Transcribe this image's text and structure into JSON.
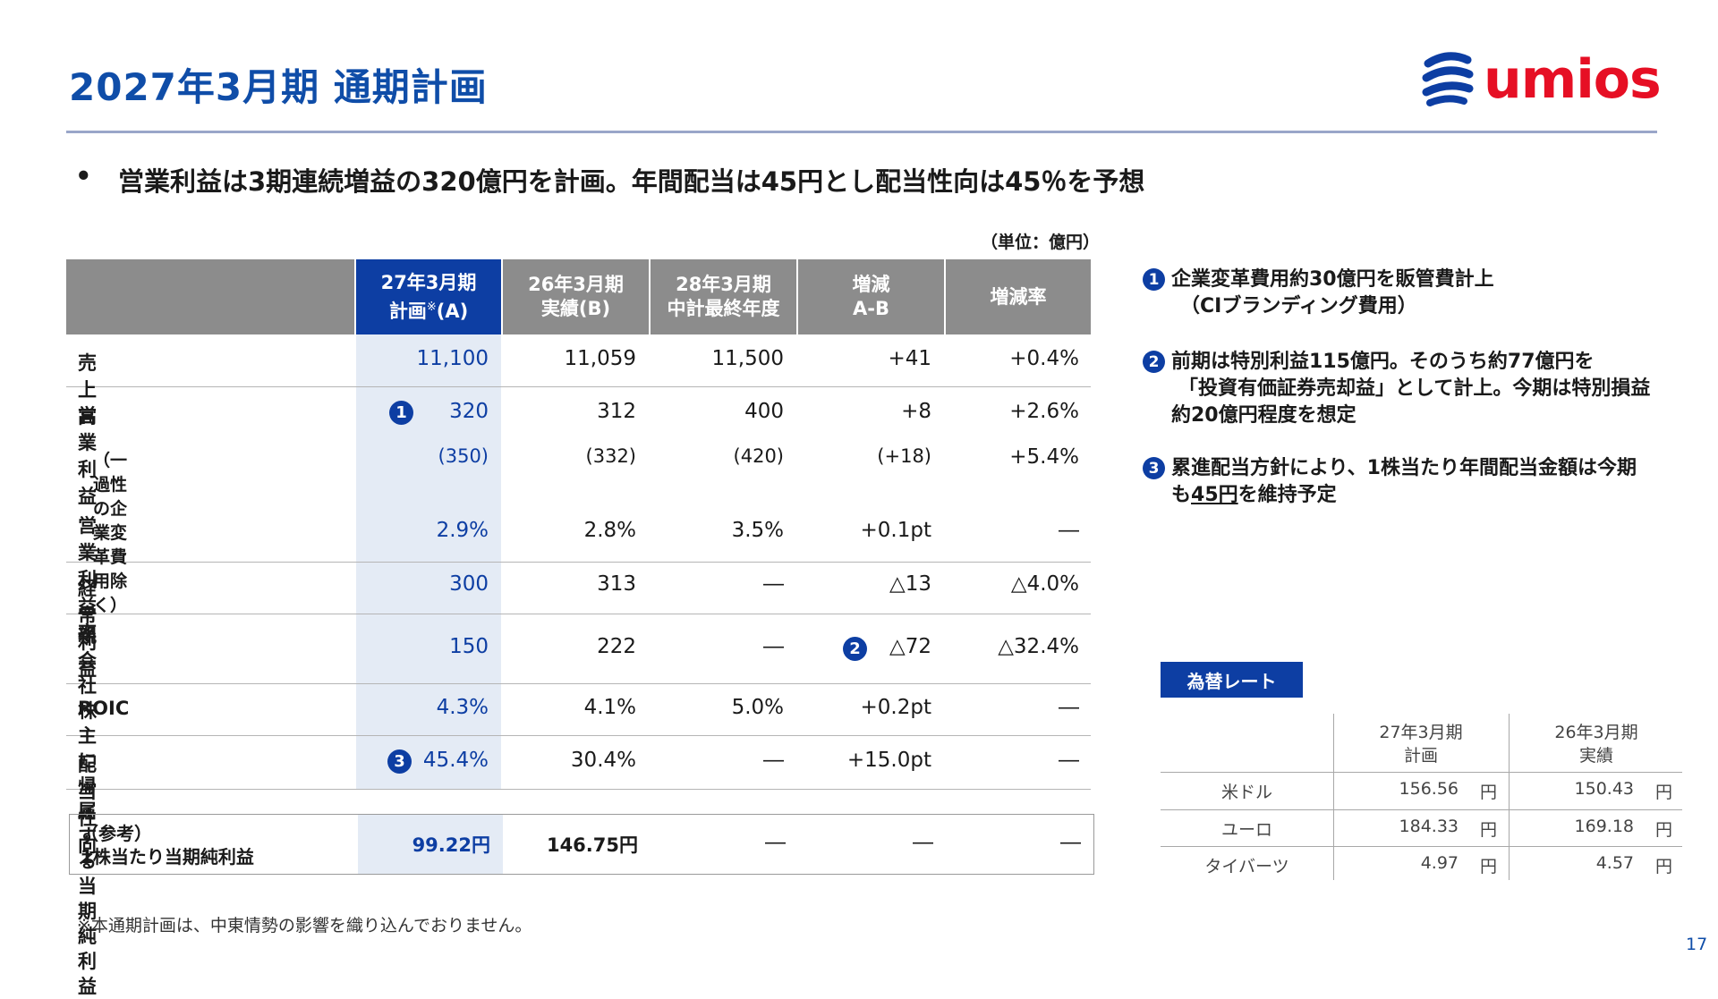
{
  "title": "2027年3月期 通期計画",
  "logo_text": "umios",
  "bullet": {
    "mark": "•",
    "text": "営業利益は3期連続増益の320億円を計画。年間配当は45円とし配当性向は45％を予想"
  },
  "unit": "（単位：億円）",
  "table": {
    "headers": [
      {
        "l1": "27年3月期",
        "l2": "計画",
        "sup": "※",
        "l3": "(A)"
      },
      {
        "l1": "26年3月期",
        "l2": "実績(B)"
      },
      {
        "l1": "28年3月期",
        "l2": "中計最終年度"
      },
      {
        "l1": "増減",
        "l2": "A-B"
      },
      {
        "l1": "増減率"
      }
    ],
    "rows": [
      {
        "label": "売上高",
        "a": "11,100",
        "b": "11,059",
        "c": "11,500",
        "d": "+41",
        "e": "+0.4%"
      },
      {
        "label": "営業利益",
        "a": "320",
        "b": "312",
        "c": "400",
        "d": "+8",
        "e": "+2.6%"
      },
      {
        "label": "（一過性の企業変革費用除く）",
        "a": "(350)",
        "b": "(332)",
        "c": "(420)",
        "d": "(+18)",
        "e": "+5.4%"
      },
      {
        "label": "営業利益率",
        "a": "2.9%",
        "b": "2.8%",
        "c": "3.5%",
        "d": "+0.1pt",
        "e": "―"
      },
      {
        "label": "経常利益",
        "a": "300",
        "b": "313",
        "c": "―",
        "d": "△13",
        "e": "△4.0%"
      },
      {
        "label1": "親会社株主に帰属する",
        "label2": "当期純利益",
        "a": "150",
        "b": "222",
        "c": "―",
        "d": "△72",
        "e": "△32.4%"
      },
      {
        "label": "ROIC",
        "a": "4.3%",
        "b": "4.1%",
        "c": "5.0%",
        "d": "+0.2pt",
        "e": "―"
      },
      {
        "label": "配当性向",
        "a": "45.4%",
        "b": "30.4%",
        "c": "―",
        "d": "+15.0pt",
        "e": "―"
      }
    ],
    "ref": {
      "label1": "（参考）",
      "label2": "1株当たり当期純利益",
      "a": "99.22円",
      "b": "146.75円",
      "c": "―",
      "d": "―",
      "e": "―"
    },
    "markers": {
      "one": "1",
      "two": "2",
      "three": "3"
    }
  },
  "notes": [
    {
      "num": "1",
      "lines": [
        "企業変革費用約30億円を販管費計上",
        "（CIブランディング費用）"
      ]
    },
    {
      "num": "2",
      "lines": [
        "前期は特別利益115億円。そのうち約77億円を",
        "「投資有価証券売却益」として計上。今期は特別損益",
        "約20億円程度を想定"
      ]
    },
    {
      "num": "3",
      "line1": "累進配当方針により、1株当たり年間配当金額は今期",
      "line2_pre": "も",
      "line2_ul": "45円",
      "line2_post": "を維持予定"
    }
  ],
  "fx": {
    "button": "為替レート",
    "col1": {
      "l1": "27年3月期",
      "l2": "計画"
    },
    "col2": {
      "l1": "26年3月期",
      "l2": "実績"
    },
    "unit": "円",
    "rows": [
      {
        "label": "米ドル",
        "a": "156.56",
        "b": "150.43"
      },
      {
        "label": "ユーロ",
        "a": "184.33",
        "b": "169.18"
      },
      {
        "label": "タイバーツ",
        "a": "4.97",
        "b": "4.57"
      }
    ]
  },
  "footnote": "※本通期計画は、中東情勢の影響を織り込んでおりません。",
  "page_number": "17",
  "colors": {
    "brand_blue": "#0d3ea3",
    "brand_red": "#e60f24",
    "header_gray": "#8c8c8c",
    "highlight_col": "#e4ebf5"
  }
}
